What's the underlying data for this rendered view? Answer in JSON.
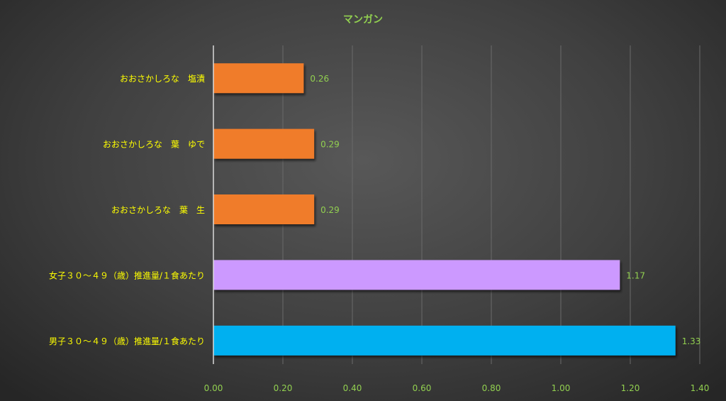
{
  "chart_data": {
    "type": "bar",
    "orientation": "horizontal",
    "title": "マンガン",
    "xlabel": "",
    "ylabel": "",
    "xlim": [
      0,
      1.4
    ],
    "x_ticks": [
      "0.00",
      "0.20",
      "0.40",
      "0.60",
      "0.80",
      "1.00",
      "1.20",
      "1.40"
    ],
    "grid": true,
    "legend": "none",
    "categories": [
      "おおさかしろな　塩漬",
      "おおさかしろな　葉　ゆで",
      "おおさかしろな　葉　生",
      "女子３０～４９（歳）推進量/１食あたり",
      "男子３０～４９（歳）推進量/１食あたり"
    ],
    "values": [
      0.26,
      0.29,
      0.29,
      1.17,
      1.33
    ],
    "value_labels": [
      "0.26",
      "0.29",
      "0.29",
      "1.17",
      "1.33"
    ],
    "bar_colors": [
      "#f07b2c",
      "#f07b2c",
      "#f07b2c",
      "#cc99ff",
      "#00b0f0"
    ],
    "colors": {
      "title": "#92d050",
      "category_labels": "#ffff00",
      "tick_labels": "#92d050",
      "value_labels": "#92d050",
      "gridlines": "#6a6a6a",
      "axis_line": "#d9d9d9"
    }
  }
}
